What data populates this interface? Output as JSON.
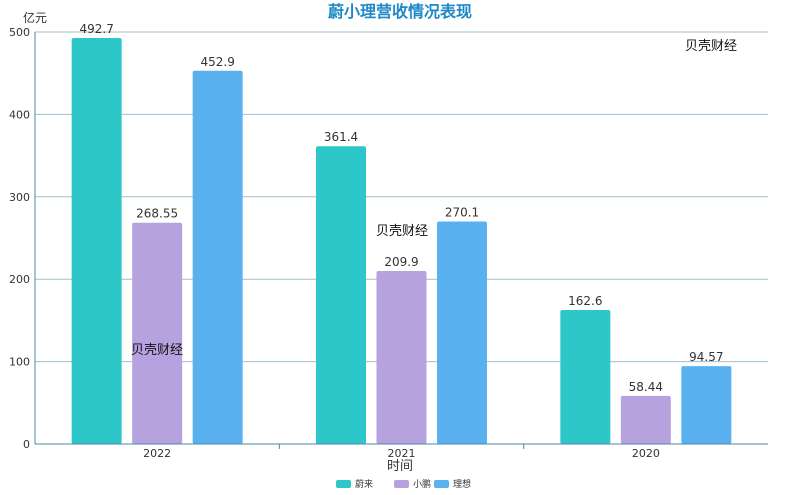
{
  "watermarks": [
    "贝壳财经",
    "贝壳财经",
    "贝壳财经"
  ],
  "chart_data": {
    "type": "bar",
    "title": "蔚小理营收情况表现",
    "xlabel": "时间",
    "ylabel": "亿元",
    "ylim": [
      0,
      500
    ],
    "yticks": [
      0,
      100,
      200,
      300,
      400,
      500
    ],
    "grid": true,
    "legend_position": "bottom",
    "categories": [
      "2022",
      "2021",
      "2020"
    ],
    "series": [
      {
        "name": "蔚来",
        "color": "#2ec7c9",
        "values": [
          492.7,
          361.4,
          162.6
        ],
        "labels": [
          "492.7",
          "361.4",
          "162.6"
        ]
      },
      {
        "name": "小鹏",
        "color": "#b6a2de",
        "values": [
          268.55,
          209.9,
          58.44
        ],
        "labels": [
          "268.55",
          "209.9",
          "58.44"
        ]
      },
      {
        "name": "理想",
        "color": "#5ab1ef",
        "values": [
          452.9,
          270.1,
          94.57
        ],
        "labels": [
          "452.9",
          "270.1",
          "94.57"
        ]
      }
    ]
  }
}
